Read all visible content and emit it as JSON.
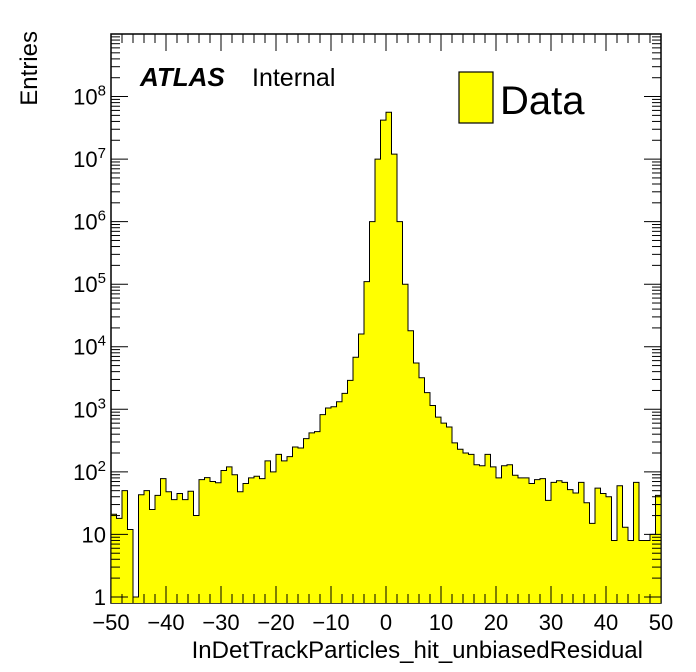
{
  "chart_data": {
    "type": "bar",
    "title": "",
    "xlabel": "InDetTrackParticles_hit_unbiasedResidual",
    "ylabel": "Entries",
    "xlim": [
      -50,
      50
    ],
    "ylim": [
      0.8,
      1000000000
    ],
    "yscale": "log",
    "grid": false,
    "legend_position": "top-right",
    "fill_color": "#ffff00",
    "line_color": "#000000",
    "label_main": "ATLAS",
    "label_sub": "Internal",
    "x_ticks": [
      "−50",
      "−40",
      "−30",
      "−20",
      "−10",
      "0",
      "10",
      "20",
      "30",
      "40",
      "50"
    ],
    "y_ticks": [
      "1",
      "10",
      "10^2",
      "10^3",
      "10^4",
      "10^5",
      "10^6",
      "10^7",
      "10^8"
    ],
    "bin_width": 1,
    "bin_edges_start": -50,
    "series": [
      {
        "name": "Data",
        "values": [
          21,
          18,
          50,
          12,
          1,
          43,
          50,
          25,
          42,
          78,
          48,
          36,
          45,
          36,
          49,
          20,
          75,
          81,
          70,
          67,
          105,
          120,
          90,
          48,
          65,
          80,
          85,
          78,
          150,
          100,
          190,
          150,
          175,
          250,
          240,
          340,
          420,
          440,
          820,
          1050,
          1100,
          1320,
          1800,
          2900,
          6800,
          16000,
          110000,
          1000000,
          10000000,
          42000000,
          56000000,
          12000000,
          1000000,
          100000,
          18000,
          5500,
          3200,
          1850,
          1150,
          750,
          600,
          520,
          290,
          230,
          200,
          190,
          130,
          125,
          190,
          120,
          80,
          125,
          130,
          88,
          80,
          80,
          65,
          75,
          78,
          35,
          68,
          72,
          68,
          52,
          46,
          68,
          32,
          15,
          55,
          45,
          40,
          8,
          60,
          13,
          8,
          68,
          8,
          8,
          10,
          42
        ]
      }
    ]
  }
}
